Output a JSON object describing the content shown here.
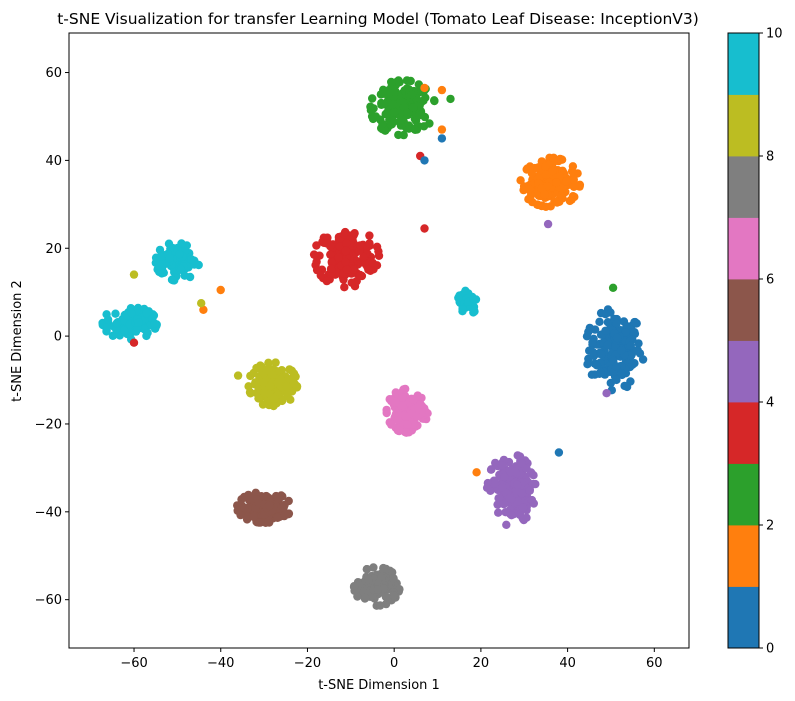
{
  "chart_data": {
    "type": "scatter",
    "title": "t-SNE Visualization for transfer Learning Model (Tomato Leaf Disease: InceptionV3)",
    "xlabel": "t-SNE Dimension 1",
    "ylabel": "t-SNE Dimension 2",
    "xlim": [
      -75,
      68
    ],
    "ylim": [
      -71,
      69
    ],
    "xticks": [
      -60,
      -40,
      -20,
      0,
      20,
      40,
      60
    ],
    "yticks": [
      -60,
      -40,
      -20,
      0,
      20,
      40,
      60
    ],
    "grid": false,
    "colorbar": {
      "range": [
        0,
        10
      ],
      "ticks": [
        0,
        2,
        4,
        6,
        8,
        10
      ],
      "colors": [
        "#1f77b4",
        "#ff7f0e",
        "#2ca02c",
        "#d62728",
        "#9467bd",
        "#8c564b",
        "#e377c2",
        "#7f7f7f",
        "#bcbd22",
        "#17becf"
      ]
    },
    "clusters": [
      {
        "class": 0,
        "center": [
          51,
          -3
        ],
        "spread": [
          5.5,
          7.5
        ],
        "count": 180
      },
      {
        "class": 1,
        "center": [
          36,
          35
        ],
        "spread": [
          5.5,
          4.5
        ],
        "count": 170
      },
      {
        "class": 2,
        "center": [
          2,
          52
        ],
        "spread": [
          6,
          5
        ],
        "count": 190
      },
      {
        "class": 3,
        "center": [
          -11,
          18
        ],
        "spread": [
          6,
          5.5
        ],
        "count": 190
      },
      {
        "class": 4,
        "center": [
          27,
          -35
        ],
        "spread": [
          4.5,
          6.5
        ],
        "count": 170
      },
      {
        "class": 5,
        "center": [
          -30,
          -39
        ],
        "spread": [
          5,
          2.8
        ],
        "count": 150
      },
      {
        "class": 6,
        "center": [
          3,
          -17
        ],
        "spread": [
          3.8,
          4
        ],
        "count": 130
      },
      {
        "class": 7,
        "center": [
          -4,
          -57
        ],
        "spread": [
          4.2,
          3.5
        ],
        "count": 130
      },
      {
        "class": 8,
        "center": [
          -28,
          -11
        ],
        "spread": [
          4.5,
          4
        ],
        "count": 160
      },
      {
        "class": 9,
        "center": [
          -61,
          3
        ],
        "spread": [
          5,
          3
        ],
        "count": 120
      },
      {
        "class": 9,
        "center": [
          -50,
          17
        ],
        "spread": [
          4,
          3.5
        ],
        "count": 100
      },
      {
        "class": 9,
        "center": [
          17,
          8
        ],
        "spread": [
          2,
          2.5
        ],
        "count": 60
      }
    ],
    "outliers": [
      {
        "class": 1,
        "x": 11,
        "y": 56
      },
      {
        "class": 1,
        "x": 11,
        "y": 47
      },
      {
        "class": 1,
        "x": -40,
        "y": 10.5
      },
      {
        "class": 1,
        "x": -44,
        "y": 6
      },
      {
        "class": 1,
        "x": 19,
        "y": -31
      },
      {
        "class": 1,
        "x": 7,
        "y": 56.5
      },
      {
        "class": 3,
        "x": -60,
        "y": -1.5
      },
      {
        "class": 3,
        "x": 6,
        "y": 41
      },
      {
        "class": 3,
        "x": 7,
        "y": 24.5
      },
      {
        "class": 0,
        "x": 7,
        "y": 40
      },
      {
        "class": 0,
        "x": 11,
        "y": 45
      },
      {
        "class": 0,
        "x": 38,
        "y": -26.5
      },
      {
        "class": 2,
        "x": 50.5,
        "y": 11
      },
      {
        "class": 2,
        "x": 13,
        "y": 54
      },
      {
        "class": 4,
        "x": 35.5,
        "y": 25.5
      },
      {
        "class": 4,
        "x": 49,
        "y": -13
      },
      {
        "class": 8,
        "x": -36,
        "y": -9
      },
      {
        "class": 8,
        "x": -44.5,
        "y": 7.5
      },
      {
        "class": 8,
        "x": -60,
        "y": 14
      }
    ]
  }
}
